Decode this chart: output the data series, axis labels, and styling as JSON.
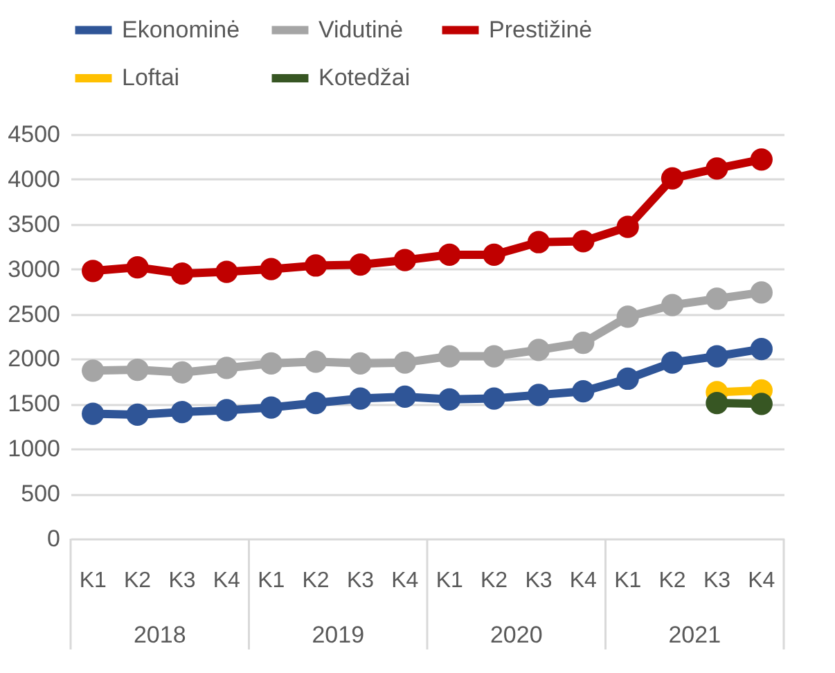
{
  "chart_data": {
    "type": "line",
    "categories": [
      "K1",
      "K2",
      "K3",
      "K4",
      "K1",
      "K2",
      "K3",
      "K4",
      "K1",
      "K2",
      "K3",
      "K4",
      "K1",
      "K2",
      "K3",
      "K4"
    ],
    "annotations": [
      "2018",
      "2019",
      "2020",
      "2021"
    ],
    "series": [
      {
        "name": "Ekonominė",
        "color": "#2f5597",
        "values": [
          1390,
          1380,
          1410,
          1430,
          1460,
          1510,
          1560,
          1580,
          1550,
          1560,
          1600,
          1640,
          1780,
          1960,
          2030,
          2110
        ]
      },
      {
        "name": "Vidutinė",
        "color": "#a5a5a5",
        "values": [
          1870,
          1880,
          1850,
          1900,
          1950,
          1970,
          1950,
          1960,
          2030,
          2030,
          2100,
          2180,
          2470,
          2600,
          2670,
          2740
        ]
      },
      {
        "name": "Prestižinė",
        "color": "#c00000",
        "values": [
          2980,
          3020,
          2950,
          2970,
          3000,
          3040,
          3050,
          3100,
          3160,
          3160,
          3300,
          3310,
          3470,
          4010,
          4120,
          4220
        ]
      },
      {
        "name": "Loftai",
        "color": "#ffc000",
        "values": [
          null,
          null,
          null,
          null,
          null,
          null,
          null,
          null,
          null,
          null,
          null,
          null,
          null,
          null,
          1630,
          1650
        ]
      },
      {
        "name": "Kotedžai",
        "color": "#375623",
        "values": [
          null,
          null,
          null,
          null,
          null,
          null,
          null,
          null,
          null,
          null,
          null,
          null,
          null,
          null,
          1510,
          1500
        ]
      }
    ],
    "ylim": [
      0,
      4500
    ],
    "yticks": [
      0,
      500,
      1000,
      1500,
      2000,
      2500,
      3000,
      3500,
      4000,
      4500
    ],
    "grid": "y",
    "legend": "top",
    "marker": "circle",
    "line_style": "solid"
  }
}
